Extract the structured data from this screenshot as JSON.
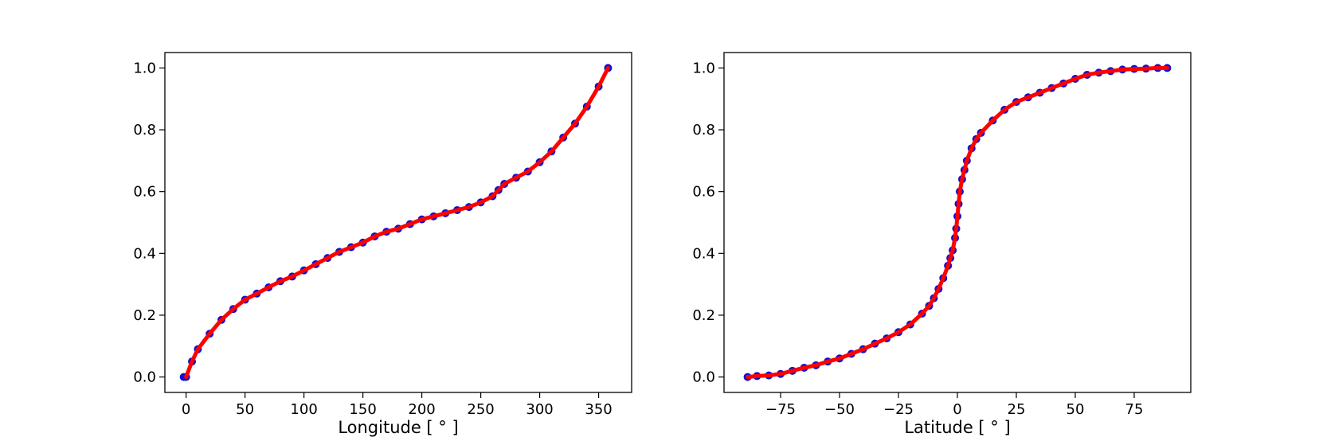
{
  "chart_data": [
    {
      "type": "scatter",
      "xlabel": "Longitude [ ° ]",
      "ylabel": "",
      "xlim": [
        -18,
        378
      ],
      "ylim": [
        -0.05,
        1.05
      ],
      "xticks": [
        0,
        50,
        100,
        150,
        200,
        250,
        300,
        350
      ],
      "xtick_labels": [
        "0",
        "50",
        "100",
        "150",
        "200",
        "250",
        "300",
        "350"
      ],
      "yticks": [
        0.0,
        0.2,
        0.4,
        0.6,
        0.8,
        1.0
      ],
      "ytick_labels": [
        "0.0",
        "0.2",
        "0.4",
        "0.6",
        "0.8",
        "1.0"
      ],
      "grid": false,
      "series": [
        {
          "style": "markers",
          "color": "#1010d0",
          "x": [
            -2,
            0,
            5,
            10,
            20,
            30,
            40,
            50,
            60,
            70,
            80,
            90,
            100,
            110,
            120,
            130,
            140,
            150,
            160,
            170,
            180,
            190,
            200,
            210,
            220,
            230,
            240,
            250,
            260,
            265,
            270,
            280,
            290,
            300,
            310,
            320,
            330,
            340,
            350,
            358
          ],
          "y": [
            0.0,
            0.0,
            0.05,
            0.09,
            0.14,
            0.185,
            0.22,
            0.25,
            0.27,
            0.29,
            0.31,
            0.325,
            0.345,
            0.365,
            0.385,
            0.405,
            0.42,
            0.435,
            0.455,
            0.47,
            0.48,
            0.495,
            0.51,
            0.52,
            0.53,
            0.54,
            0.55,
            0.565,
            0.585,
            0.605,
            0.625,
            0.645,
            0.665,
            0.695,
            0.73,
            0.775,
            0.82,
            0.875,
            0.94,
            1.0
          ]
        },
        {
          "style": "line",
          "color": "#ff0000",
          "x": [
            0,
            5,
            10,
            20,
            30,
            40,
            50,
            60,
            70,
            80,
            90,
            100,
            110,
            120,
            130,
            140,
            150,
            160,
            170,
            180,
            190,
            200,
            210,
            220,
            230,
            240,
            250,
            260,
            265,
            270,
            280,
            290,
            300,
            310,
            320,
            330,
            340,
            350,
            358
          ],
          "y": [
            0.0,
            0.05,
            0.09,
            0.14,
            0.185,
            0.22,
            0.25,
            0.27,
            0.29,
            0.31,
            0.325,
            0.345,
            0.365,
            0.385,
            0.405,
            0.42,
            0.435,
            0.455,
            0.47,
            0.48,
            0.495,
            0.51,
            0.52,
            0.53,
            0.54,
            0.55,
            0.565,
            0.585,
            0.605,
            0.625,
            0.645,
            0.665,
            0.695,
            0.73,
            0.775,
            0.82,
            0.875,
            0.94,
            1.0
          ]
        }
      ]
    },
    {
      "type": "scatter",
      "xlabel": "Latitude [ ° ]",
      "ylabel": "",
      "xlim": [
        -99,
        99
      ],
      "ylim": [
        -0.05,
        1.05
      ],
      "xticks": [
        -75,
        -50,
        -25,
        0,
        25,
        50,
        75
      ],
      "xtick_labels": [
        "−75",
        "−50",
        "−25",
        "0",
        "25",
        "50",
        "75"
      ],
      "yticks": [
        0.0,
        0.2,
        0.4,
        0.6,
        0.8,
        1.0
      ],
      "ytick_labels": [
        "0.0",
        "0.2",
        "0.4",
        "0.6",
        "0.8",
        "1.0"
      ],
      "grid": false,
      "series": [
        {
          "style": "markers",
          "color": "#1010d0",
          "x": [
            -89,
            -85,
            -80,
            -75,
            -70,
            -65,
            -60,
            -55,
            -50,
            -45,
            -40,
            -35,
            -30,
            -25,
            -20,
            -15,
            -12,
            -10,
            -8,
            -6,
            -4,
            -3,
            -2,
            -1,
            -0.5,
            0,
            0.5,
            1,
            2,
            3,
            4,
            6,
            8,
            10,
            15,
            20,
            25,
            30,
            35,
            40,
            45,
            50,
            55,
            60,
            65,
            70,
            75,
            80,
            85,
            89
          ],
          "y": [
            0.0,
            0.003,
            0.005,
            0.01,
            0.02,
            0.03,
            0.038,
            0.05,
            0.06,
            0.075,
            0.09,
            0.108,
            0.125,
            0.145,
            0.17,
            0.205,
            0.23,
            0.255,
            0.285,
            0.32,
            0.36,
            0.385,
            0.41,
            0.45,
            0.48,
            0.52,
            0.56,
            0.6,
            0.64,
            0.67,
            0.7,
            0.74,
            0.77,
            0.79,
            0.83,
            0.865,
            0.89,
            0.905,
            0.92,
            0.935,
            0.95,
            0.965,
            0.978,
            0.985,
            0.99,
            0.995,
            0.997,
            0.998,
            1.0,
            1.0
          ]
        },
        {
          "style": "line",
          "color": "#ff0000",
          "x": [
            -89,
            -85,
            -80,
            -75,
            -70,
            -65,
            -60,
            -55,
            -50,
            -45,
            -40,
            -35,
            -30,
            -25,
            -20,
            -15,
            -12,
            -10,
            -8,
            -6,
            -4,
            -3,
            -2,
            -1,
            -0.5,
            0,
            0.5,
            1,
            2,
            3,
            4,
            6,
            8,
            10,
            15,
            20,
            25,
            30,
            35,
            40,
            45,
            50,
            55,
            60,
            65,
            70,
            75,
            80,
            85,
            89
          ],
          "y": [
            0.0,
            0.003,
            0.005,
            0.01,
            0.02,
            0.03,
            0.038,
            0.05,
            0.06,
            0.075,
            0.09,
            0.108,
            0.125,
            0.145,
            0.17,
            0.205,
            0.23,
            0.255,
            0.285,
            0.32,
            0.36,
            0.385,
            0.41,
            0.45,
            0.48,
            0.52,
            0.56,
            0.6,
            0.64,
            0.67,
            0.7,
            0.74,
            0.77,
            0.79,
            0.83,
            0.865,
            0.89,
            0.905,
            0.92,
            0.935,
            0.95,
            0.965,
            0.978,
            0.985,
            0.99,
            0.995,
            0.997,
            0.998,
            1.0,
            1.0
          ]
        }
      ]
    }
  ]
}
